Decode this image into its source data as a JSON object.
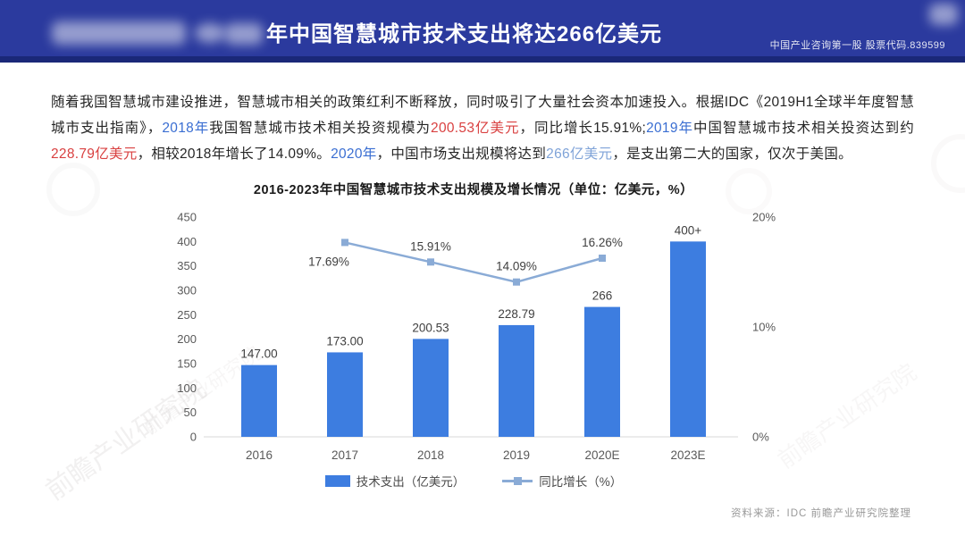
{
  "colors": {
    "header_bg": "#2b3a9e",
    "header_edge": "#1a2878",
    "bar": "#3d7de0",
    "line": "#8aabd6",
    "acc_blue": "#3a6ed2",
    "acc_red": "#d94040",
    "acc_lblue": "#7fa3d8",
    "ink": "#262626",
    "axis": "#595959",
    "muted": "#999999"
  },
  "header": {
    "title": "年中国智慧城市技术支出将达266亿美元",
    "tagline": "中国产业咨询第一股 股票代码.839599"
  },
  "paragraph": {
    "segments": [
      {
        "text": "随着我国智慧城市建设推进，智慧城市相关的政策红利不断释放，同时吸引了大量社会资本加速投入。根据IDC《2019H1全球半年度智慧城市支出指南》，",
        "color": "dark"
      },
      {
        "text": "2018年",
        "color": "blue"
      },
      {
        "text": "我国智慧城市技术相关投资规模为",
        "color": "dark"
      },
      {
        "text": "200.53亿美元",
        "color": "red"
      },
      {
        "text": "，同比增长15.91%;",
        "color": "dark"
      },
      {
        "text": "2019年",
        "color": "blue"
      },
      {
        "text": "中国智慧城市技术相关投资达到约",
        "color": "dark"
      },
      {
        "text": "228.79亿美元",
        "color": "red"
      },
      {
        "text": "，相较2018年增长了14.09%。",
        "color": "dark"
      },
      {
        "text": "2020年",
        "color": "blue"
      },
      {
        "text": "，中国市场支出规模将达到",
        "color": "dark"
      },
      {
        "text": "266亿美元",
        "color": "lblue"
      },
      {
        "text": "，是支出第二大的国家，仅次于美国。",
        "color": "dark"
      }
    ]
  },
  "chart_data": {
    "type": "bar",
    "title": "2016-2023年中国智慧城市技术支出规模及增长情况（单位：亿美元，%）",
    "categories": [
      "2016",
      "2017",
      "2018",
      "2019",
      "2020E",
      "2023E"
    ],
    "series": [
      {
        "name": "技术支出（亿美元）",
        "type": "bar",
        "axis": "left",
        "color": "#3d7de0",
        "values": [
          147.0,
          173.0,
          200.53,
          228.79,
          266,
          400
        ],
        "labels": [
          "147.00",
          "173.00",
          "200.53",
          "228.79",
          "266",
          "400+"
        ]
      },
      {
        "name": "同比增长（%）",
        "type": "line",
        "axis": "right",
        "color": "#8aabd6",
        "values": [
          null,
          17.69,
          15.91,
          14.09,
          16.26,
          null
        ],
        "labels": [
          null,
          "17.69%",
          "15.91%",
          "14.09%",
          "16.26%",
          null
        ],
        "label_side": [
          null,
          "below",
          "above",
          "above",
          "above",
          null
        ]
      }
    ],
    "left_axis": {
      "min": 0,
      "max": 450,
      "step": 50
    },
    "right_axis": {
      "min": 0,
      "max": 20,
      "ticks": [
        {
          "v": 20,
          "label": "20%"
        },
        {
          "v": 10,
          "label": "10%"
        },
        {
          "v": 0,
          "label": "0%"
        }
      ]
    },
    "grid": false,
    "legend_position": "bottom"
  },
  "footer": {
    "source": "资料来源：IDC 前瞻产业研究院整理"
  },
  "watermark": {
    "text": "前瞻产业研究院"
  }
}
